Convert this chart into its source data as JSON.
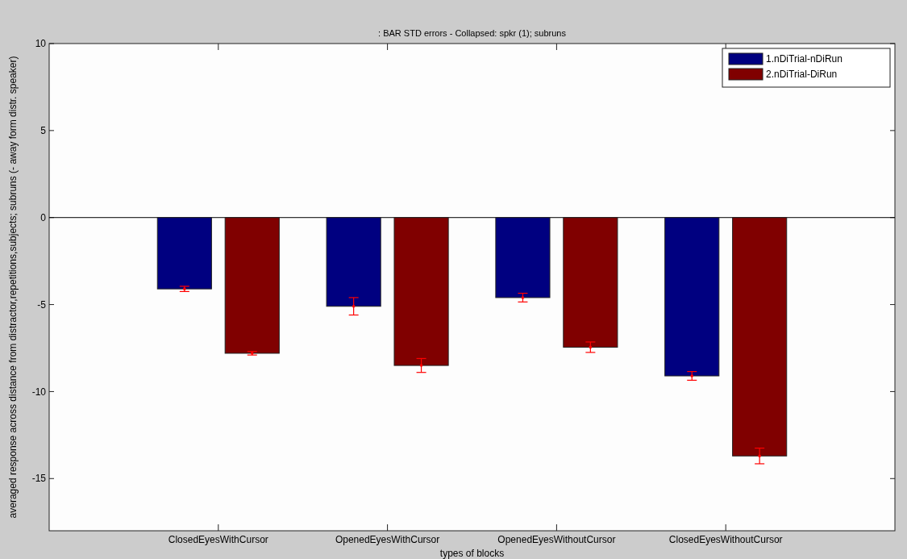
{
  "chart_data": {
    "type": "bar",
    "title": ": BAR STD errors - Collapsed: spkr (1); subruns",
    "xlabel": "types of blocks",
    "ylabel": "averaged response across distance from distractor,repetitions,subjects; subruns (- away form distr. speaker)",
    "categories": [
      "ClosedEyesWithCursor",
      "OpenedEyesWithCursor",
      "OpenedEyesWithoutCursor",
      "ClosedEyesWithoutCursor"
    ],
    "series": [
      {
        "name": "1.nDiTrial-nDiRun",
        "color": "#000080",
        "values": [
          -4.1,
          -5.1,
          -4.6,
          -9.1
        ],
        "errors": [
          0.15,
          0.5,
          0.25,
          0.25
        ]
      },
      {
        "name": "2.nDiTrial-DiRun",
        "color": "#800000",
        "values": [
          -7.8,
          -8.5,
          -7.45,
          -13.7
        ],
        "errors": [
          0.1,
          0.4,
          0.3,
          0.45
        ]
      }
    ],
    "ylim": [
      -18,
      10
    ],
    "yticks": [
      -15,
      -10,
      -5,
      0,
      5,
      10
    ],
    "legend": "top right"
  }
}
